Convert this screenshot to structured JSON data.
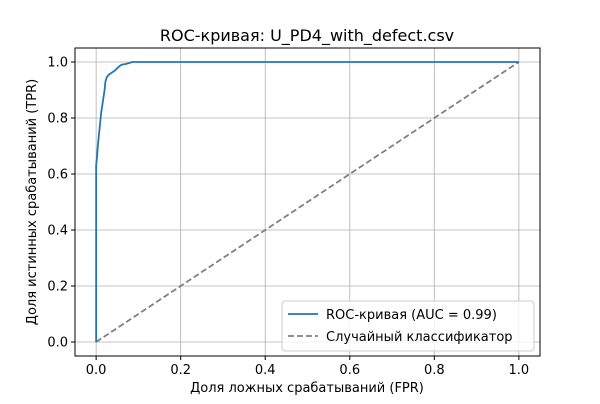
{
  "chart_data": {
    "type": "line",
    "title": "ROC-кривая: U_PD4_with_defect.csv",
    "xlabel": "Доля ложных срабатываний (FPR)",
    "ylabel": "Доля истинных срабатываний (TPR)",
    "xlim": [
      -0.05,
      1.05
    ],
    "ylim": [
      -0.05,
      1.05
    ],
    "xticks": [
      0.0,
      0.2,
      0.4,
      0.6,
      0.8,
      1.0
    ],
    "xtick_labels": [
      "0.0",
      "0.2",
      "0.4",
      "0.6",
      "0.8",
      "1.0"
    ],
    "yticks": [
      0.0,
      0.2,
      0.4,
      0.6,
      0.8,
      1.0
    ],
    "ytick_labels": [
      "0.0",
      "0.2",
      "0.4",
      "0.6",
      "0.8",
      "1.0"
    ],
    "grid": true,
    "legend_position": "lower-right",
    "series": [
      {
        "name": "ROC-кривая (AUC = 0.99)",
        "color": "#1f77b4",
        "style": "solid",
        "x": [
          0.0,
          0.0,
          0.002,
          0.004,
          0.006,
          0.008,
          0.01,
          0.012,
          0.015,
          0.018,
          0.02,
          0.022,
          0.025,
          0.03,
          0.035,
          0.04,
          0.045,
          0.05,
          0.055,
          0.06,
          0.07,
          0.08,
          0.085,
          0.1,
          0.5,
          1.0
        ],
        "y": [
          0.0,
          0.63,
          0.66,
          0.7,
          0.73,
          0.76,
          0.79,
          0.82,
          0.85,
          0.88,
          0.9,
          0.93,
          0.945,
          0.955,
          0.96,
          0.965,
          0.97,
          0.978,
          0.985,
          0.99,
          0.993,
          0.997,
          1.0,
          1.0,
          1.0,
          1.0
        ]
      },
      {
        "name": "Случайный классификатор",
        "color": "#808080",
        "style": "dashed",
        "x": [
          0.0,
          1.0
        ],
        "y": [
          0.0,
          1.0
        ]
      }
    ]
  }
}
